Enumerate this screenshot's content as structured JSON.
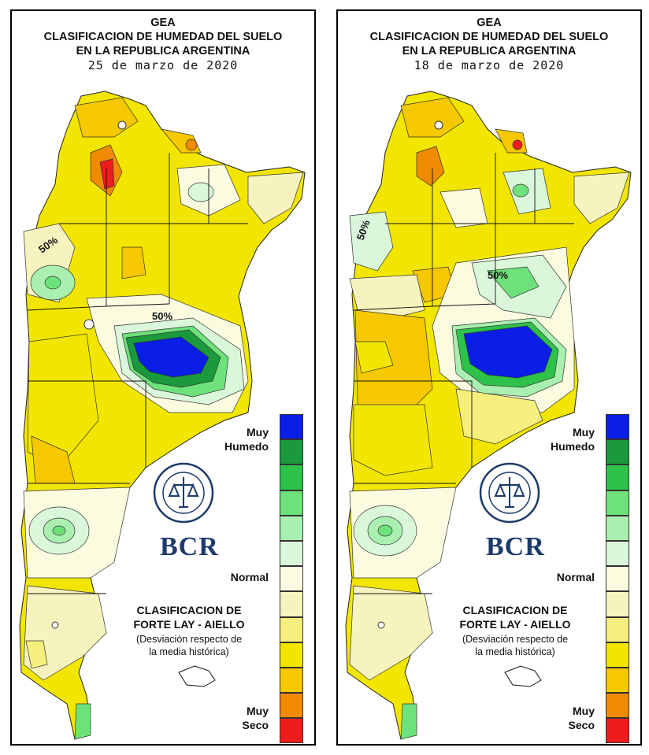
{
  "panels": [
    {
      "title_line1": "GEA",
      "title_line2": "CLASIFICACION DE HUMEDAD DEL SUELO",
      "title_line3": "EN LA REPUBLICA ARGENTINA",
      "date": "25 de marzo de 2020",
      "contour_labels": [
        "50%",
        "50%"
      ],
      "legend": {
        "top_label_line1": "Muy",
        "top_label_line2": "Humedo",
        "mid_label": "Normal",
        "bottom_label_line1": "Muy",
        "bottom_label_line2": "Seco"
      },
      "source_line1": "CLASIFICACION DE",
      "source_line2": "FORTE LAY - AIELLO",
      "source_line3": "(Desviación respecto de",
      "source_line4": "la media histórica)",
      "brand": "BCR"
    },
    {
      "title_line1": "GEA",
      "title_line2": "CLASIFICACION DE HUMEDAD DEL SUELO",
      "title_line3": "EN LA REPUBLICA ARGENTINA",
      "date": "18 de marzo de 2020",
      "contour_labels": [
        "50%",
        "50%"
      ],
      "legend": {
        "top_label_line1": "Muy",
        "top_label_line2": "Humedo",
        "mid_label": "Normal",
        "bottom_label_line1": "Muy",
        "bottom_label_line2": "Seco"
      },
      "source_line1": "CLASIFICACION DE",
      "source_line2": "FORTE LAY - AIELLO",
      "source_line3": "(Desviación respecto de",
      "source_line4": "la media histórica)",
      "brand": "BCR"
    }
  ],
  "legend_colors": [
    "#0a1ee6",
    "#1a9a3c",
    "#2ec24a",
    "#6ee27a",
    "#a9f0b0",
    "#daf7dc",
    "#fbfbe0",
    "#f7f3bf",
    "#f5ef7e",
    "#f2e600",
    "#f5c800",
    "#f08a00",
    "#ee1c1c"
  ],
  "legend_class_order": [
    "muy-humedo",
    "humedo-3",
    "humedo-2",
    "humedo-1",
    "normal-humedo-2",
    "normal-humedo-1",
    "normal",
    "normal-seco-1",
    "normal-seco-2",
    "seco-1",
    "seco-2",
    "seco-3",
    "muy-seco"
  ]
}
